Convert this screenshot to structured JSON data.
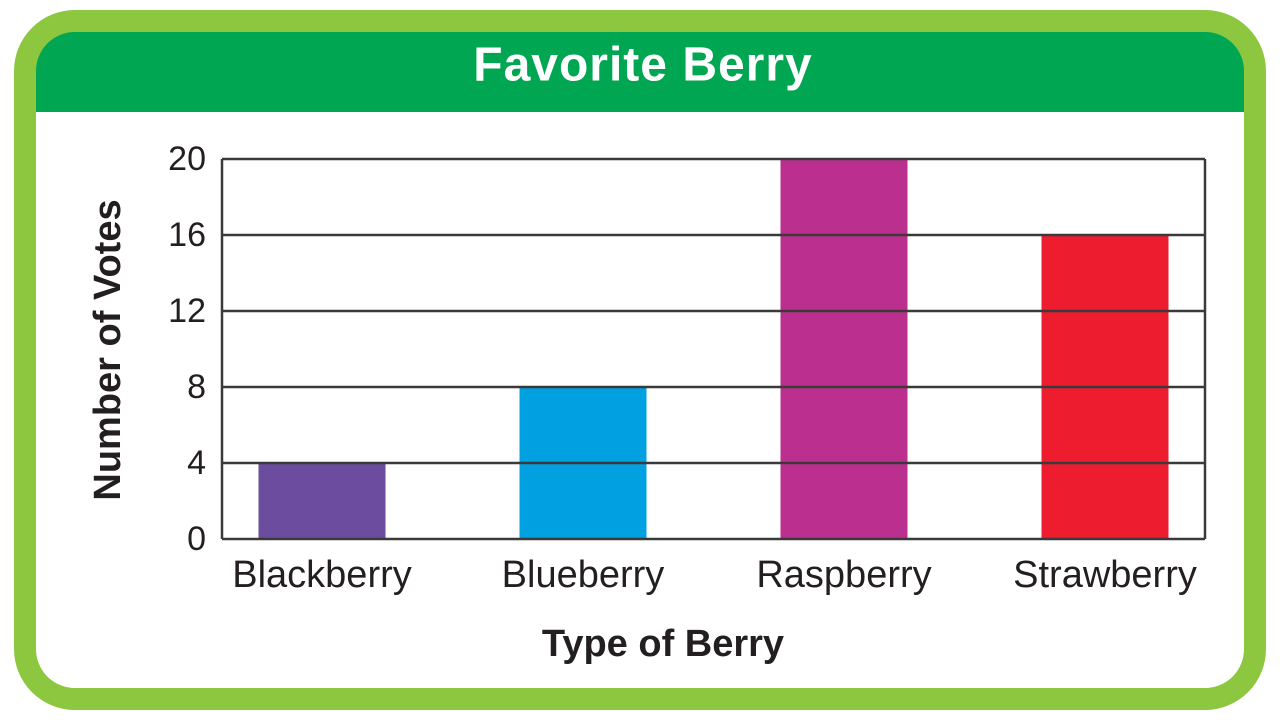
{
  "chart_data": {
    "type": "bar",
    "title": "Favorite Berry",
    "x_label": "Type of Berry",
    "y_label": "Number of Votes",
    "categories": [
      "Blackberry",
      "Blueberry",
      "Raspberry",
      "Strawberry"
    ],
    "values": [
      4,
      8,
      20,
      16
    ],
    "colors": [
      "#6b4c9f",
      "#00a0e1",
      "#bb2f8e",
      "#ed1c2f"
    ],
    "ylim": [
      0,
      20
    ],
    "yticks": [
      0,
      4,
      8,
      12,
      16,
      20
    ],
    "grid": true
  }
}
